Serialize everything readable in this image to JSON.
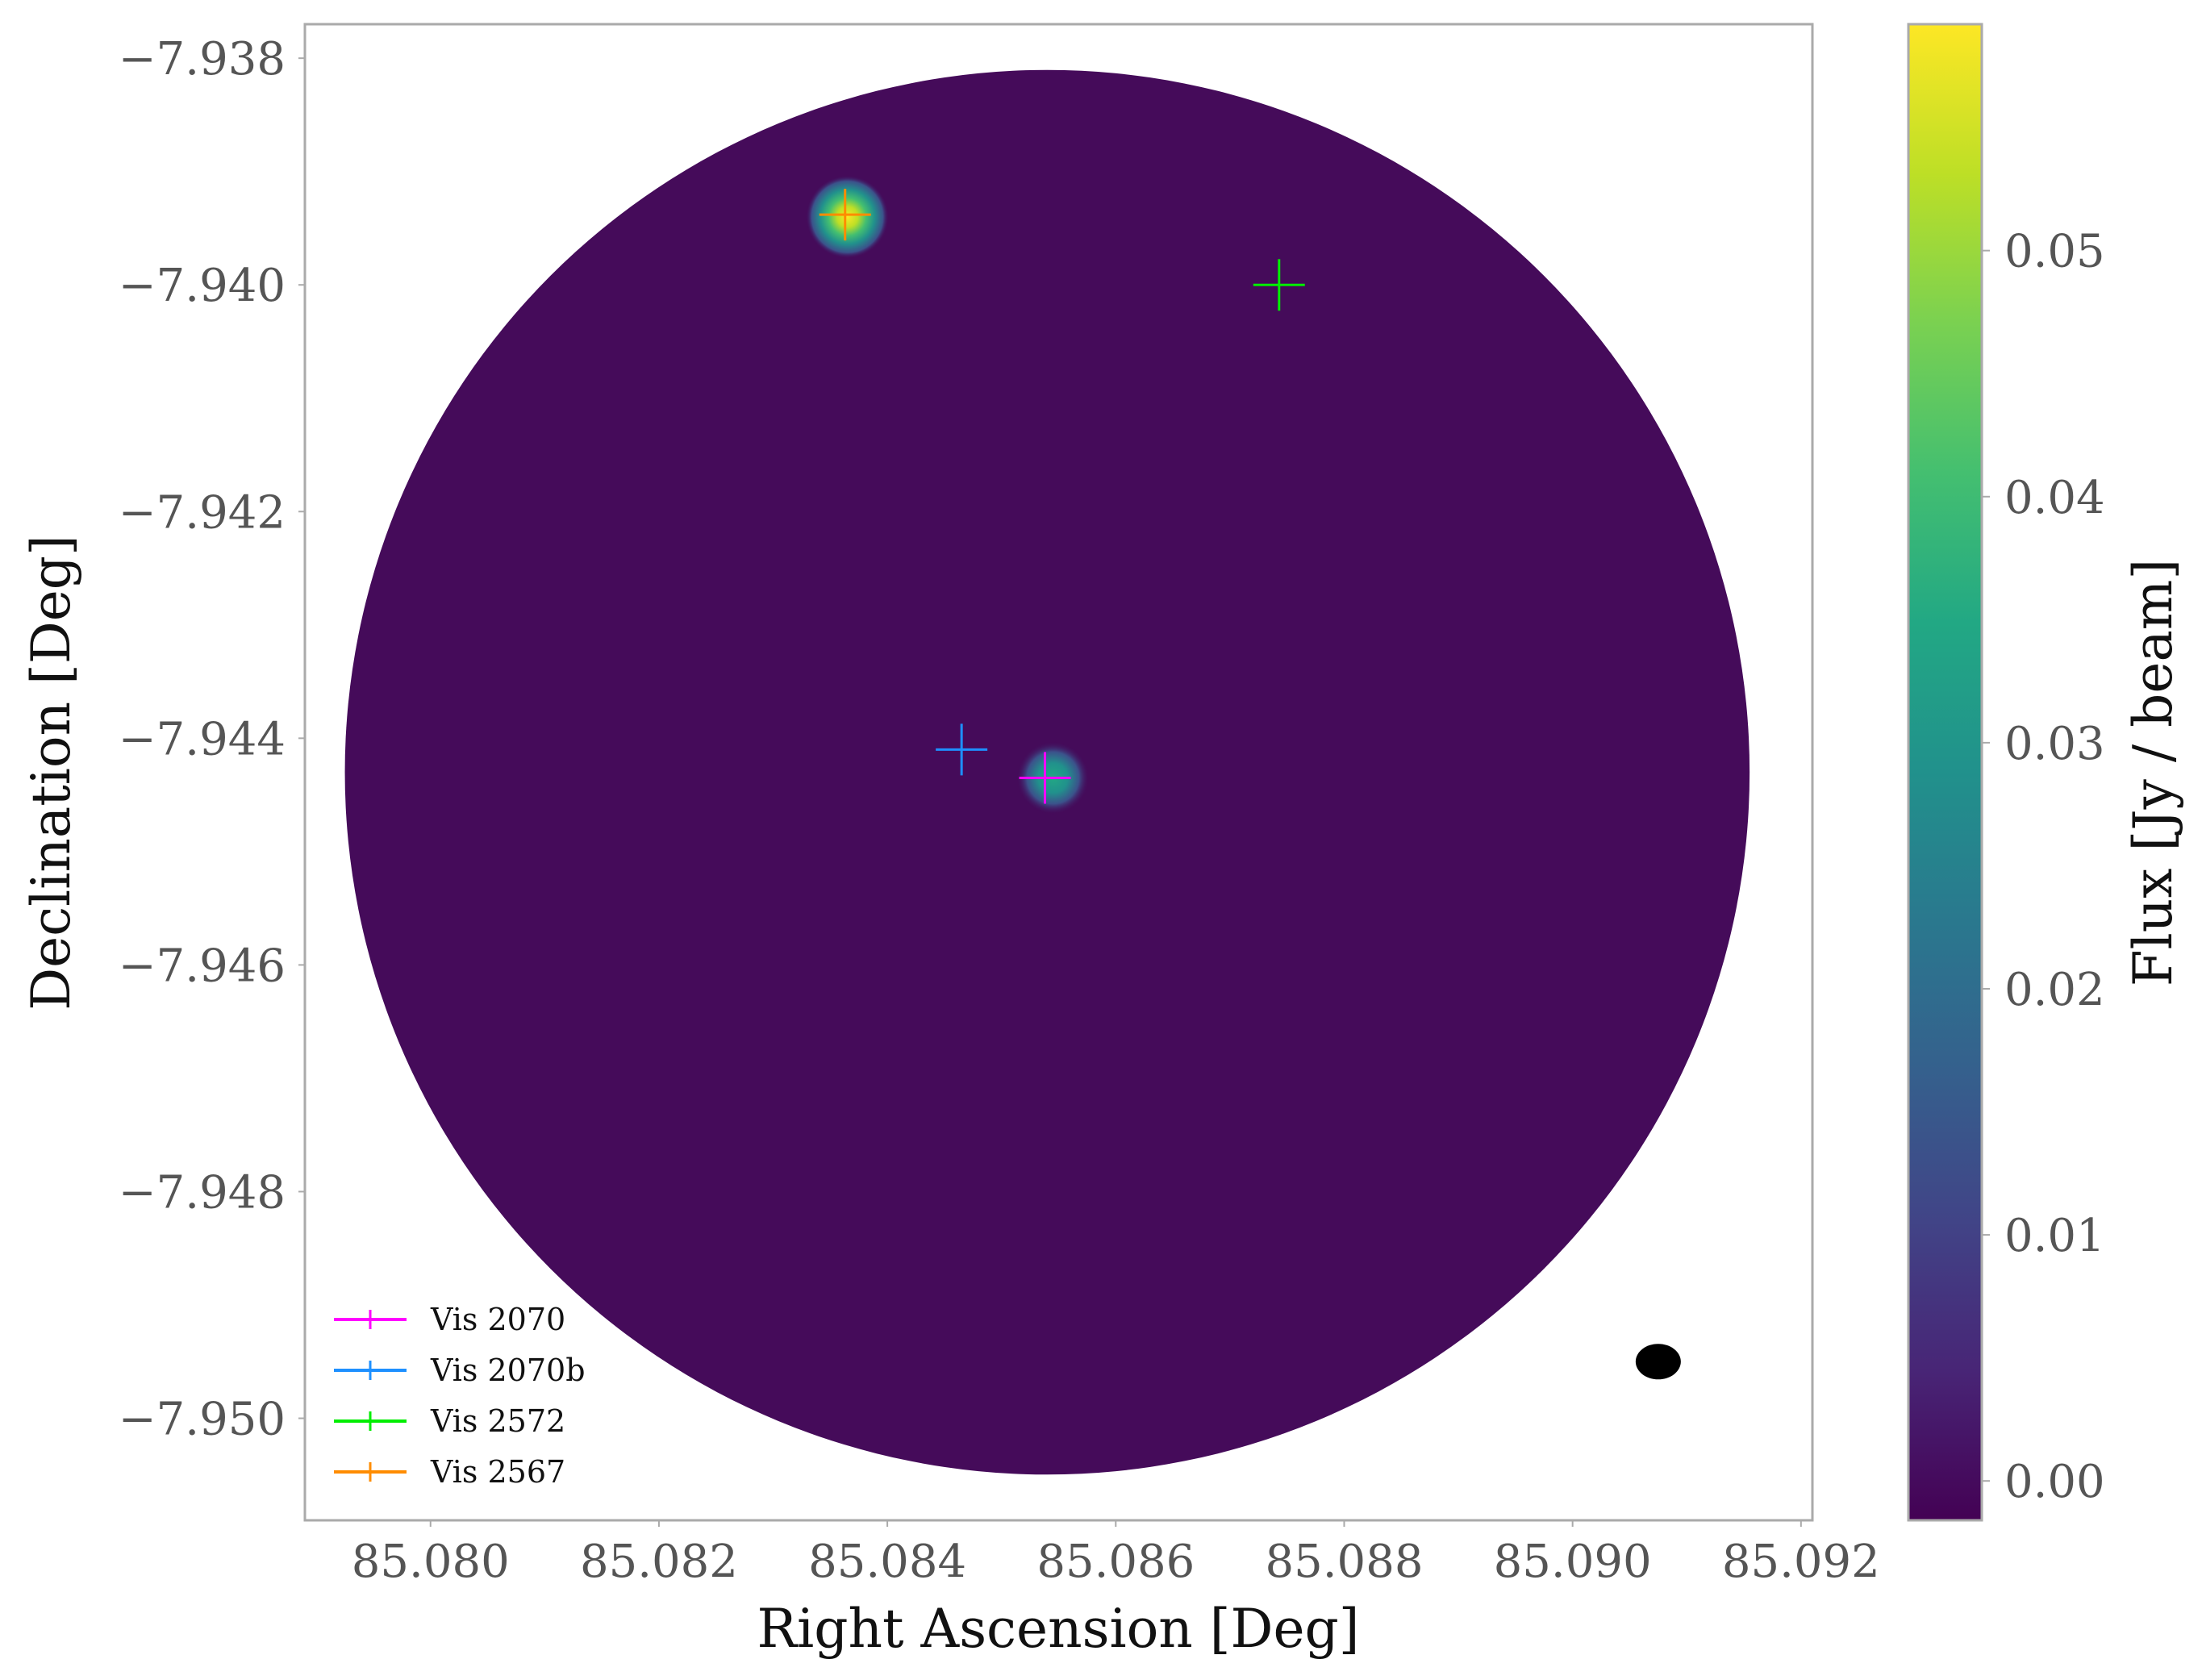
{
  "chart_data": {
    "type": "heatmap",
    "xlabel": "Right Ascension [Deg]",
    "ylabel": "Declination [Deg]",
    "xlim": [
      85.0789,
      85.0921
    ],
    "ylim": [
      -7.9509,
      -7.9377
    ],
    "xticks": [
      {
        "value": 85.08,
        "label": "85.080"
      },
      {
        "value": 85.082,
        "label": "85.082"
      },
      {
        "value": 85.084,
        "label": "85.084"
      },
      {
        "value": 85.086,
        "label": "85.086"
      },
      {
        "value": 85.088,
        "label": "85.088"
      },
      {
        "value": 85.09,
        "label": "85.090"
      },
      {
        "value": 85.092,
        "label": "85.092"
      }
    ],
    "yticks": [
      {
        "value": -7.938,
        "label": "−7.938"
      },
      {
        "value": -7.94,
        "label": "−7.940"
      },
      {
        "value": -7.942,
        "label": "−7.942"
      },
      {
        "value": -7.944,
        "label": "−7.944"
      },
      {
        "value": -7.946,
        "label": "−7.946"
      },
      {
        "value": -7.948,
        "label": "−7.948"
      },
      {
        "value": -7.95,
        "label": "−7.950"
      }
    ],
    "map": {
      "colormap": "viridis",
      "field_center": [
        85.0854,
        -7.9443
      ],
      "field_radius_deg": 0.00615,
      "background_flux": 0.0,
      "sources": [
        {
          "ra": 85.08365,
          "dec": -7.9394,
          "peak_flux": 0.058
        },
        {
          "ra": 85.08545,
          "dec": -7.94435,
          "peak_flux": 0.036
        }
      ],
      "beam": {
        "ra": 85.09075,
        "dec": -7.9495
      }
    },
    "markers": [
      {
        "name": "Vis 2070",
        "ra": 85.08538,
        "dec": -7.94435,
        "color": "#ff00ff"
      },
      {
        "name": "Vis 2070b",
        "ra": 85.08465,
        "dec": -7.9441,
        "color": "#1e90ff"
      },
      {
        "name": "Vis 2572",
        "ra": 85.08743,
        "dec": -7.94,
        "color": "#00ee00"
      },
      {
        "name": "Vis 2567",
        "ra": 85.08363,
        "dec": -7.93938,
        "color": "#ff8c00"
      }
    ],
    "legend_position": "lower-left",
    "colorbar": {
      "label": "Flux [Jy / beam]",
      "range": [
        -0.0016,
        0.0592
      ],
      "ticks": [
        {
          "value": 0.0,
          "label": "0.00"
        },
        {
          "value": 0.01,
          "label": "0.01"
        },
        {
          "value": 0.02,
          "label": "0.02"
        },
        {
          "value": 0.03,
          "label": "0.03"
        },
        {
          "value": 0.04,
          "label": "0.04"
        },
        {
          "value": 0.05,
          "label": "0.05"
        }
      ]
    },
    "grid": false
  }
}
